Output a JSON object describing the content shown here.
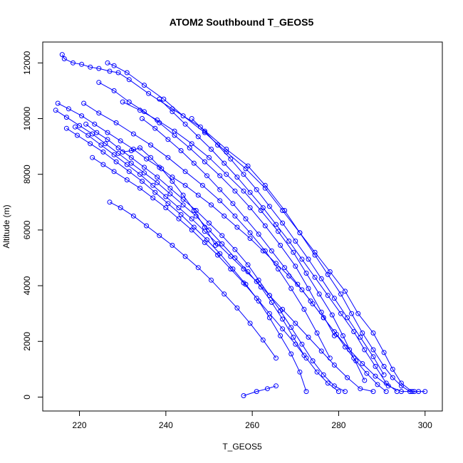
{
  "chart_data": {
    "type": "line",
    "title": "ATOM2 Southbound T_GEOS5",
    "xlabel": "T_GEOS5",
    "ylabel": "Altitude (m)",
    "xlim": [
      211.5,
      304
    ],
    "ylim": [
      -500,
      12750
    ],
    "xticks": [
      220,
      240,
      260,
      280,
      300
    ],
    "yticks": [
      0,
      2000,
      4000,
      6000,
      8000,
      10000,
      12000
    ],
    "grid": false,
    "marker": "open-circle",
    "color": "#0000ff",
    "series": [
      {
        "x": [
          216.0,
          216.5,
          218.5,
          220.5,
          222.5,
          224.5,
          227.0,
          229.0,
          231.5,
          236.0,
          241.5,
          248.0,
          254.0,
          259.0,
          263.0,
          267.5,
          271.0,
          274.5,
          278.0,
          281.5,
          284.5,
          288.0,
          290.5,
          292.5,
          294.5,
          297.0,
          300.0
        ],
        "y": [
          12300,
          12150,
          12000,
          11950,
          11850,
          11800,
          11700,
          11650,
          11400,
          10900,
          10350,
          9700,
          8900,
          8300,
          7600,
          6700,
          5900,
          5200,
          4500,
          3800,
          3000,
          2300,
          1600,
          1000,
          500,
          200,
          200
        ]
      },
      {
        "x": [
          226.5,
          228.0,
          231.0,
          235.0,
          239.5,
          244.0,
          249.0,
          254.0,
          258.5,
          263.0,
          267.0,
          271.0,
          274.5,
          277.5,
          280.5,
          283.0,
          285.5,
          288.0,
          290.5,
          292.5,
          294.5,
          296.5,
          298.5
        ],
        "y": [
          12000,
          11900,
          11650,
          11200,
          10700,
          10100,
          9500,
          8800,
          8200,
          7500,
          6700,
          5900,
          5100,
          4400,
          3700,
          3000,
          2300,
          1700,
          1100,
          700,
          400,
          200,
          200
        ]
      },
      {
        "x": [
          215.0,
          217.5,
          220.5,
          223.5,
          226.5,
          229.5,
          232.5,
          235.5,
          238.5,
          241.5,
          244.5,
          247.5,
          250.5,
          253.5,
          256.5,
          259.5,
          262.5,
          265.5,
          268.5,
          271.5,
          274.0,
          276.5,
          279.0,
          281.5,
          284.0,
          286.5,
          289.0,
          291.0
        ],
        "y": [
          10550,
          10350,
          10100,
          9800,
          9500,
          9200,
          8900,
          8550,
          8250,
          7900,
          7600,
          7250,
          6900,
          6500,
          6100,
          5700,
          5250,
          4800,
          4350,
          3850,
          3350,
          2850,
          2350,
          1800,
          1300,
          850,
          450,
          200
        ]
      },
      {
        "x": [
          214.5,
          217.0,
          220.0,
          223.0,
          226.0,
          229.0,
          232.0,
          235.0,
          238.0,
          241.0,
          244.0,
          247.0,
          250.0,
          253.0,
          256.0,
          259.0,
          262.0,
          264.5,
          267.0,
          269.5,
          272.0
        ],
        "y": [
          10300,
          10050,
          9750,
          9450,
          9100,
          8750,
          8400,
          8050,
          7700,
          7300,
          6900,
          6500,
          6000,
          5500,
          5000,
          4500,
          3950,
          3400,
          2800,
          2150,
          1500
        ]
      },
      {
        "x": [
          217.0,
          219.5,
          222.5,
          225.5,
          228.5,
          231.5,
          234.5,
          237.5,
          240.5,
          243.5,
          246.5,
          249.5,
          252.5,
          255.5,
          258.5,
          261.5,
          264.0,
          266.5,
          269.0,
          271.0,
          272.5
        ],
        "y": [
          9650,
          9400,
          9100,
          8800,
          8450,
          8100,
          7750,
          7350,
          6950,
          6550,
          6100,
          5650,
          5150,
          4600,
          4050,
          3450,
          2850,
          2200,
          1550,
          900,
          200
        ]
      },
      {
        "x": [
          221.5,
          224.0,
          226.5,
          229.0,
          232.0,
          235.0,
          238.0,
          241.0,
          244.0,
          247.0,
          250.0,
          253.0,
          256.0,
          259.0,
          261.5,
          264.0,
          266.5,
          269.0,
          271.5,
          274.0,
          276.5,
          279.0,
          281.5
        ],
        "y": [
          9800,
          9500,
          9250,
          8950,
          8600,
          8250,
          7900,
          7500,
          7100,
          6700,
          6250,
          5800,
          5300,
          4750,
          4200,
          3650,
          3100,
          2500,
          1900,
          1300,
          800,
          400,
          200
        ]
      },
      {
        "x": [
          230.0,
          234.0,
          238.0,
          242.0,
          246.0,
          250.0,
          254.0,
          258.0,
          262.0,
          266.0,
          269.5,
          272.5,
          275.5,
          278.5,
          281.0,
          283.5,
          286.0
        ],
        "y": [
          10600,
          10300,
          9950,
          9550,
          9100,
          8600,
          8000,
          7400,
          6700,
          5950,
          5200,
          4450,
          3700,
          2950,
          2200,
          1400,
          600
        ]
      },
      {
        "x": [
          238.5,
          241.5,
          244.5,
          247.5,
          250.5,
          253.5,
          256.5,
          259.5,
          262.5,
          265.5,
          268.5,
          271.5,
          274.5,
          277.5,
          280.5,
          283.5,
          286.0,
          288.5,
          291.0,
          293.5
        ],
        "y": [
          10700,
          10250,
          9800,
          9350,
          8900,
          8400,
          7900,
          7350,
          6800,
          6200,
          5600,
          4950,
          4300,
          3650,
          3000,
          2350,
          1700,
          1100,
          500,
          200
        ]
      },
      {
        "x": [
          227.0,
          229.5,
          232.5,
          235.5,
          238.5,
          241.5,
          244.5,
          247.5,
          250.5,
          253.5,
          256.5,
          259.5,
          262.5,
          265.5
        ],
        "y": [
          7000,
          6800,
          6500,
          6150,
          5800,
          5450,
          5050,
          4650,
          4200,
          3700,
          3200,
          2650,
          2050,
          1400
        ]
      },
      {
        "x": [
          221.0,
          224.5,
          228.5,
          232.5,
          236.5,
          240.5,
          244.5,
          248.5,
          252.5,
          256.0,
          259.5,
          263.0,
          266.0,
          269.0,
          272.0,
          275.0,
          278.0
        ],
        "y": [
          10550,
          10200,
          9850,
          9450,
          9050,
          8600,
          8100,
          7600,
          7050,
          6500,
          5900,
          5250,
          4600,
          3900,
          3150,
          2300,
          1400
        ]
      },
      {
        "x": [
          224.5,
          228.0,
          231.5,
          235.0,
          238.5,
          242.0,
          245.5,
          249.0,
          252.5,
          256.0,
          259.5,
          263.0,
          266.5,
          270.0,
          273.0,
          276.0,
          279.0
        ],
        "y": [
          11300,
          11000,
          10600,
          10250,
          9850,
          9400,
          8950,
          8450,
          7950,
          7400,
          6800,
          6150,
          5450,
          4700,
          3900,
          3050,
          2200
        ]
      },
      {
        "x": [
          219.0,
          222.0,
          225.0,
          228.0,
          231.0,
          234.0,
          237.0,
          240.0,
          243.0,
          246.0,
          249.0,
          252.0,
          255.0,
          258.0,
          261.0,
          264.0,
          267.0,
          270.0,
          273.0,
          276.0,
          279.0,
          282.0,
          285.0,
          288.0
        ],
        "y": [
          9700,
          9400,
          9050,
          8700,
          8350,
          8000,
          7600,
          7200,
          6800,
          6400,
          5950,
          5500,
          5050,
          4600,
          4150,
          3650,
          3150,
          2650,
          2150,
          1650,
          1150,
          700,
          300,
          200
        ]
      },
      {
        "x": [
          230.0,
          232.0,
          234.0,
          236.5,
          239.0,
          241.5,
          244.0,
          246.5,
          249.0,
          251.5
        ],
        "y": [
          8800,
          8850,
          8950,
          8600,
          8200,
          7750,
          7250,
          6700,
          6100,
          5450
        ]
      },
      {
        "x": [
          234.5,
          237.5,
          240.5,
          243.5,
          246.5,
          249.5,
          252.5,
          255.5,
          258.5,
          261.5,
          264.5,
          267.5,
          270.5,
          273.5,
          276.5,
          279.5,
          282.5,
          285.5,
          288.5,
          291.5,
          294.5,
          297.5
        ],
        "y": [
          10000,
          9650,
          9250,
          8850,
          8400,
          7950,
          7450,
          6950,
          6400,
          5850,
          5250,
          4650,
          4050,
          3450,
          2850,
          2250,
          1700,
          1200,
          750,
          400,
          200,
          200
        ]
      },
      {
        "x": [
          246.0,
          249.0,
          252.0,
          255.0,
          258.0,
          261.0,
          264.0,
          267.0,
          270.0,
          273.0,
          276.0,
          279.0,
          282.0,
          285.0,
          288.0,
          290.5
        ],
        "y": [
          10000,
          9550,
          9050,
          8550,
          8000,
          7450,
          6850,
          6250,
          5600,
          4950,
          4250,
          3550,
          2850,
          2150,
          1450,
          800
        ]
      },
      {
        "x": [
          223.0,
          225.5,
          228.0,
          231.0,
          234.0,
          237.0,
          240.0,
          243.0,
          246.0,
          249.0,
          252.0,
          255.0,
          258.0,
          261.0,
          264.0,
          267.0,
          270.0,
          272.5,
          275.0,
          277.5,
          280.0
        ],
        "y": [
          8600,
          8350,
          8100,
          7800,
          7500,
          7150,
          6800,
          6400,
          6000,
          5550,
          5100,
          4600,
          4100,
          3550,
          3000,
          2450,
          1900,
          1400,
          900,
          500,
          200
        ]
      },
      {
        "x": [
          258.0,
          261.0,
          263.5,
          265.5
        ],
        "y": [
          50,
          200,
          300,
          400
        ]
      }
    ]
  }
}
